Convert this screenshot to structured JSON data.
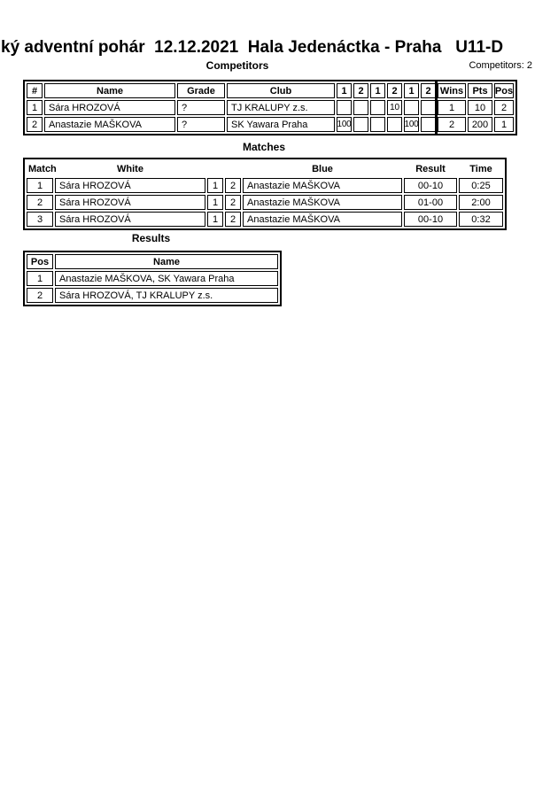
{
  "page": {
    "title": "ký adventní pohár  12.12.2021  Hala Jedenáctka - Praha   U11-D",
    "competitors_count": "Competitors: 2"
  },
  "competitors": {
    "heading": "Competitors",
    "columns": [
      "#",
      "Name",
      "Grade",
      "Club",
      "1",
      "2",
      "1",
      "2",
      "1",
      "2",
      "Wins",
      "Pts",
      "Pos"
    ],
    "rows": [
      [
        "1",
        "Sára HROZOVÁ",
        "?",
        "TJ KRALUPY z.s.",
        "",
        "",
        "",
        "10",
        "",
        "",
        "1",
        "10",
        "2"
      ],
      [
        "2",
        "Anastazie MAŠKOVA",
        "?",
        "SK Yawara Praha",
        "100",
        "",
        "",
        "",
        "100",
        "",
        "2",
        "200",
        "1"
      ]
    ]
  },
  "matches": {
    "heading": "Matches",
    "columns": [
      "Match",
      "White",
      "Blue",
      "Result",
      "Time"
    ],
    "rows": [
      [
        "1",
        "Sára HROZOVÁ",
        "1",
        "2",
        "Anastazie MAŠKOVA",
        "00-10",
        "0:25"
      ],
      [
        "2",
        "Sára HROZOVÁ",
        "1",
        "2",
        "Anastazie MAŠKOVA",
        "01-00",
        "2:00"
      ],
      [
        "3",
        "Sára HROZOVÁ",
        "1",
        "2",
        "Anastazie MAŠKOVA",
        "00-10",
        "0:32"
      ]
    ]
  },
  "results": {
    "heading": "Results",
    "columns": [
      "Pos",
      "Name"
    ],
    "rows": [
      [
        "1",
        "Anastazie MAŠKOVA, SK Yawara Praha"
      ],
      [
        "2",
        "Sára HROZOVÁ, TJ KRALUPY z.s."
      ]
    ]
  },
  "colors": {
    "text": "#000000",
    "background": "#ffffff"
  }
}
